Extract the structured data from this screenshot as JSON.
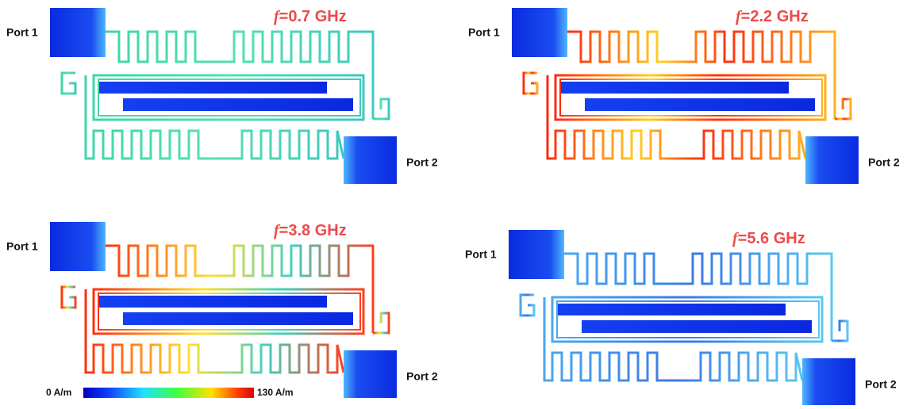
{
  "panels": [
    {
      "port1": "Port 1",
      "port2": "Port 2",
      "freq_symbol": "f",
      "freq_text": "=0.7 GHz"
    },
    {
      "port1": "Port 1",
      "port2": "Port 2",
      "freq_symbol": "f",
      "freq_text": "=2.2 GHz"
    },
    {
      "port1": "Port 1",
      "port2": "Port 2",
      "freq_symbol": "f",
      "freq_text": "=3.8 GHz"
    },
    {
      "port1": "Port 1",
      "port2": "Port 2",
      "freq_symbol": "f",
      "freq_text": "=5.6 GHz"
    }
  ],
  "colorbar": {
    "min_label": "0 A/m",
    "max_label": "130 A/m"
  }
}
